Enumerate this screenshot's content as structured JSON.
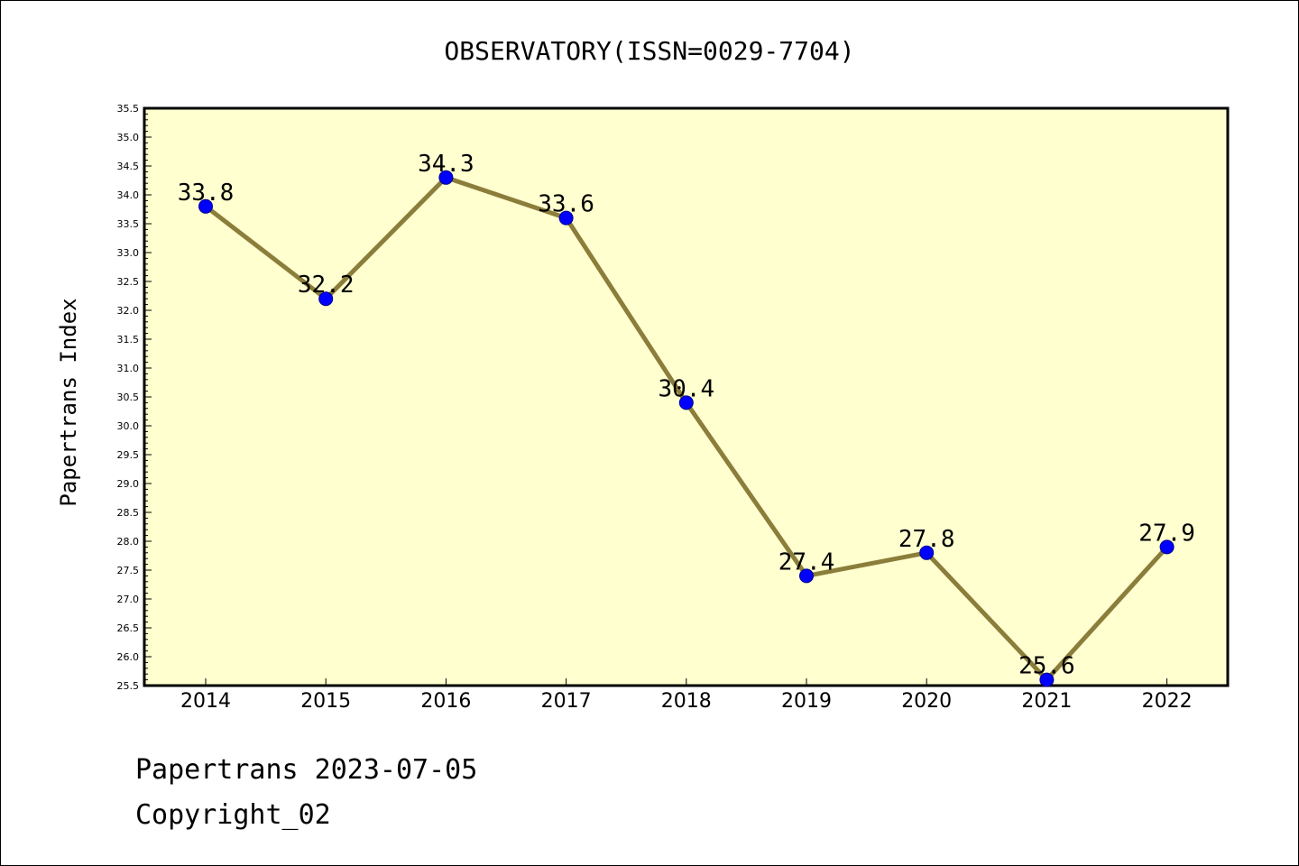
{
  "chart_data": {
    "type": "line",
    "title": "OBSERVATORY(ISSN=0029-7704)",
    "xlabel": "",
    "ylabel": "Papertrans Index",
    "categories": [
      "2014",
      "2015",
      "2016",
      "2017",
      "2018",
      "2019",
      "2020",
      "2021",
      "2022"
    ],
    "series": [
      {
        "values": [
          33.8,
          32.2,
          34.3,
          33.6,
          30.4,
          27.4,
          27.8,
          25.6,
          27.9
        ],
        "data_labels": [
          "33.8",
          "32.2",
          "34.3",
          "33.6",
          "30.4",
          "27.4",
          "27.8",
          "25.6",
          "27.9"
        ]
      }
    ],
    "ylim": [
      25.5,
      35.5
    ],
    "y_ticks": [
      "25.5",
      "26.0",
      "26.5",
      "27.0",
      "27.5",
      "28.0",
      "28.5",
      "29.0",
      "29.5",
      "30.0",
      "30.5",
      "31.0",
      "31.5",
      "32.0",
      "32.5",
      "33.0",
      "33.5",
      "34.0",
      "34.5",
      "35.0",
      "35.5"
    ],
    "grid": false,
    "legend": "none",
    "colors": {
      "plot_background": "#ffffd0",
      "line": "#8b7d3a",
      "marker": "#0000ff",
      "axis": "#000000"
    }
  },
  "footer": {
    "line1": "Papertrans 2023-07-05",
    "line2": "Copyright_02"
  }
}
